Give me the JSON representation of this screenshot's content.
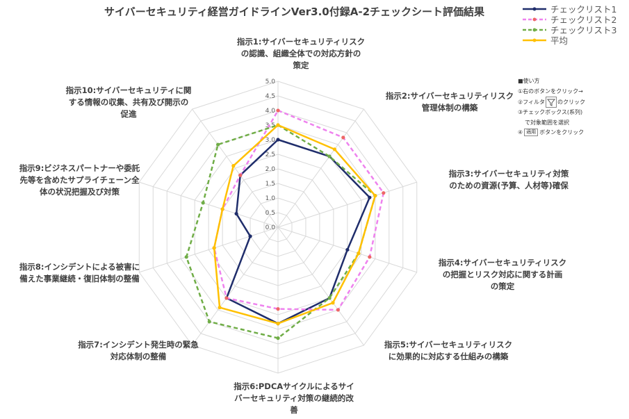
{
  "chart_data": {
    "type": "radar",
    "title": "サイバーセキュリティ経営ガイドラインVer3.0付録A-2チェックシート評価結果",
    "categories": [
      "指示1:サイバーセキュリティリスク\nの認識、組織全体での対応方針の\n策定",
      "指示2:サイバーセキュリティリスク\n管理体制の構築",
      "指示3:サイバーセキュリティ対策\nのための資源(予算、人材等)確保",
      "指示4:サイバーセキュリティリスク\nの把握とリスク対応に関する計画\nの策定",
      "指示5:サイバーセキュリティリスク\nに効果的に対応する仕組みの構築",
      "指示6:PDCAサイクルによるサイ\nバーセキュリティ対策の継続的改\n善",
      "指示7:インシデント発生時の緊急\n対応体制の整備",
      "指示8:インシデントによる被害に\n備えた事業継続・復旧体制の整備",
      "指示9:ビジネスパートナーや委託\n先等を含めたサプライチェーン全\n体の状況把握及び対策",
      "指示10:サイバーセキュリティに関\nする情報の収集、共有及び開示の\n促進"
    ],
    "rlim": [
      0,
      5
    ],
    "ticks": [
      "0.0",
      "0.5",
      "1.0",
      "1.5",
      "2.0",
      "2.5",
      "3.0",
      "3.5",
      "4.0",
      "4.5",
      "5.0"
    ],
    "series": [
      {
        "name": "チェックリスト1",
        "color": "#1f2d6b",
        "style": "solid",
        "values": [
          3.0,
          3.0,
          3.3,
          2.5,
          3.0,
          3.3,
          3.0,
          1.0,
          1.5,
          2.2
        ]
      },
      {
        "name": "チェックリスト2",
        "color": "#ee82ee",
        "style": "dashed",
        "values": [
          4.0,
          3.8,
          3.8,
          3.3,
          3.5,
          2.8,
          3.0,
          2.3,
          2.0,
          2.2
        ]
      },
      {
        "name": "チェックリスト3",
        "color": "#70ad47",
        "style": "dashed",
        "values": [
          3.5,
          3.0,
          3.5,
          2.9,
          3.0,
          3.8,
          4.0,
          3.3,
          2.7,
          3.5
        ]
      },
      {
        "name": "平均",
        "color": "#ffc000",
        "style": "solid",
        "values": [
          3.5,
          3.3,
          3.5,
          2.9,
          3.2,
          3.3,
          3.4,
          2.3,
          2.0,
          2.6
        ]
      }
    ],
    "legend": "top-right",
    "grid": true
  },
  "usage_note": {
    "heading": "■使い方",
    "line1": "①右のボタンをクリック→",
    "line2a": "②フィルタ",
    "line2b": "のクリック",
    "line3": "③チェックボックス(系列)",
    "line4": "で対象範囲を選択",
    "line5a": "④",
    "button_label": "適用",
    "line5b": "ボタンをクリック"
  }
}
